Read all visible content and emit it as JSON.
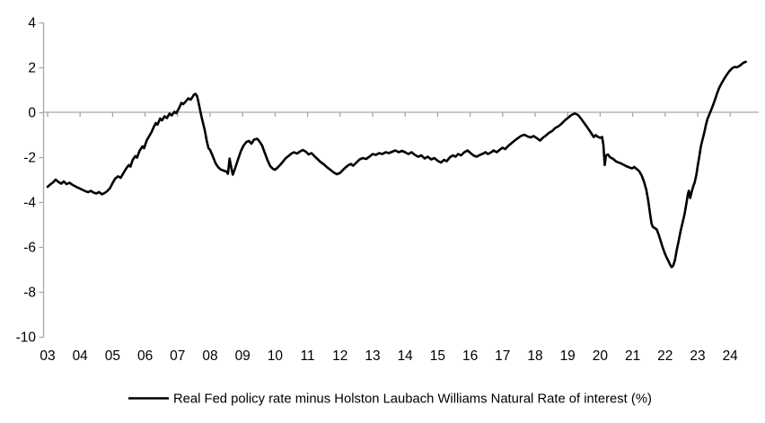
{
  "legend": {
    "label": "Real Fed policy rate minus Holston Laubach Williams Natural Rate of interest (%)"
  },
  "colors": {
    "axis": "#a6a6a6",
    "series": "#000000",
    "background": "#ffffff"
  },
  "chart_data": {
    "type": "line",
    "title": "",
    "xlabel": "",
    "ylabel": "",
    "grid": "zero-line-only",
    "legend_position": "bottom-center",
    "ylim": [
      -10,
      4
    ],
    "xlim": [
      2002.85,
      2024.9
    ],
    "y_ticks": [
      4,
      2,
      0,
      -2,
      -4,
      -6,
      -8,
      -10
    ],
    "y_tick_labels": [
      "4",
      "2",
      "0",
      "-2",
      "-4",
      "-6",
      "-8",
      "-10"
    ],
    "x_tick_years": [
      2003,
      2004,
      2005,
      2006,
      2007,
      2008,
      2009,
      2010,
      2011,
      2012,
      2013,
      2014,
      2015,
      2016,
      2017,
      2018,
      2019,
      2020,
      2021,
      2022,
      2023,
      2024
    ],
    "x_tick_labels": [
      "03",
      "04",
      "05",
      "06",
      "07",
      "08",
      "09",
      "10",
      "11",
      "12",
      "13",
      "14",
      "15",
      "16",
      "17",
      "18",
      "19",
      "20",
      "21",
      "22",
      "23",
      "24"
    ],
    "series": [
      {
        "name": "Real Fed policy rate minus Holston Laubach Williams Natural Rate of interest (%)",
        "color": "#000000",
        "points": [
          [
            2003.0,
            -3.32
          ],
          [
            2003.08,
            -3.22
          ],
          [
            2003.17,
            -3.12
          ],
          [
            2003.25,
            -3.0
          ],
          [
            2003.33,
            -3.1
          ],
          [
            2003.42,
            -3.18
          ],
          [
            2003.5,
            -3.08
          ],
          [
            2003.58,
            -3.2
          ],
          [
            2003.67,
            -3.14
          ],
          [
            2003.75,
            -3.22
          ],
          [
            2003.83,
            -3.28
          ],
          [
            2003.92,
            -3.35
          ],
          [
            2004.0,
            -3.4
          ],
          [
            2004.08,
            -3.46
          ],
          [
            2004.17,
            -3.52
          ],
          [
            2004.25,
            -3.56
          ],
          [
            2004.33,
            -3.5
          ],
          [
            2004.42,
            -3.58
          ],
          [
            2004.5,
            -3.62
          ],
          [
            2004.58,
            -3.55
          ],
          [
            2004.67,
            -3.65
          ],
          [
            2004.75,
            -3.6
          ],
          [
            2004.83,
            -3.52
          ],
          [
            2004.92,
            -3.38
          ],
          [
            2005.0,
            -3.15
          ],
          [
            2005.08,
            -2.95
          ],
          [
            2005.17,
            -2.85
          ],
          [
            2005.25,
            -2.92
          ],
          [
            2005.33,
            -2.72
          ],
          [
            2005.42,
            -2.5
          ],
          [
            2005.5,
            -2.35
          ],
          [
            2005.55,
            -2.42
          ],
          [
            2005.62,
            -2.12
          ],
          [
            2005.7,
            -1.95
          ],
          [
            2005.75,
            -2.02
          ],
          [
            2005.83,
            -1.72
          ],
          [
            2005.92,
            -1.52
          ],
          [
            2005.97,
            -1.6
          ],
          [
            2006.05,
            -1.25
          ],
          [
            2006.12,
            -1.08
          ],
          [
            2006.2,
            -0.88
          ],
          [
            2006.25,
            -0.7
          ],
          [
            2006.33,
            -0.48
          ],
          [
            2006.38,
            -0.55
          ],
          [
            2006.46,
            -0.28
          ],
          [
            2006.52,
            -0.36
          ],
          [
            2006.6,
            -0.18
          ],
          [
            2006.67,
            -0.26
          ],
          [
            2006.75,
            -0.06
          ],
          [
            2006.82,
            -0.14
          ],
          [
            2006.9,
            0.02
          ],
          [
            2006.96,
            -0.04
          ],
          [
            2007.05,
            0.2
          ],
          [
            2007.12,
            0.42
          ],
          [
            2007.17,
            0.36
          ],
          [
            2007.25,
            0.48
          ],
          [
            2007.33,
            0.62
          ],
          [
            2007.4,
            0.56
          ],
          [
            2007.45,
            0.66
          ],
          [
            2007.5,
            0.78
          ],
          [
            2007.55,
            0.82
          ],
          [
            2007.6,
            0.72
          ],
          [
            2007.65,
            0.4
          ],
          [
            2007.7,
            0.05
          ],
          [
            2007.75,
            -0.3
          ],
          [
            2007.83,
            -0.75
          ],
          [
            2007.9,
            -1.3
          ],
          [
            2007.95,
            -1.6
          ],
          [
            2008.0,
            -1.68
          ],
          [
            2008.08,
            -1.95
          ],
          [
            2008.17,
            -2.28
          ],
          [
            2008.25,
            -2.45
          ],
          [
            2008.33,
            -2.55
          ],
          [
            2008.42,
            -2.6
          ],
          [
            2008.5,
            -2.64
          ],
          [
            2008.55,
            -2.74
          ],
          [
            2008.6,
            -2.06
          ],
          [
            2008.65,
            -2.45
          ],
          [
            2008.7,
            -2.78
          ],
          [
            2008.78,
            -2.45
          ],
          [
            2008.87,
            -2.05
          ],
          [
            2008.95,
            -1.72
          ],
          [
            2009.03,
            -1.48
          ],
          [
            2009.12,
            -1.32
          ],
          [
            2009.2,
            -1.28
          ],
          [
            2009.27,
            -1.4
          ],
          [
            2009.35,
            -1.22
          ],
          [
            2009.45,
            -1.18
          ],
          [
            2009.52,
            -1.3
          ],
          [
            2009.6,
            -1.48
          ],
          [
            2009.68,
            -1.8
          ],
          [
            2009.77,
            -2.15
          ],
          [
            2009.85,
            -2.4
          ],
          [
            2009.93,
            -2.52
          ],
          [
            2010.0,
            -2.56
          ],
          [
            2010.08,
            -2.46
          ],
          [
            2010.17,
            -2.32
          ],
          [
            2010.25,
            -2.18
          ],
          [
            2010.33,
            -2.04
          ],
          [
            2010.42,
            -1.94
          ],
          [
            2010.5,
            -1.84
          ],
          [
            2010.58,
            -1.78
          ],
          [
            2010.67,
            -1.84
          ],
          [
            2010.75,
            -1.76
          ],
          [
            2010.85,
            -1.68
          ],
          [
            2010.95,
            -1.76
          ],
          [
            2011.03,
            -1.88
          ],
          [
            2011.12,
            -1.82
          ],
          [
            2011.2,
            -1.94
          ],
          [
            2011.3,
            -2.08
          ],
          [
            2011.4,
            -2.22
          ],
          [
            2011.5,
            -2.32
          ],
          [
            2011.6,
            -2.45
          ],
          [
            2011.7,
            -2.56
          ],
          [
            2011.8,
            -2.68
          ],
          [
            2011.9,
            -2.76
          ],
          [
            2012.0,
            -2.7
          ],
          [
            2012.08,
            -2.58
          ],
          [
            2012.17,
            -2.45
          ],
          [
            2012.25,
            -2.36
          ],
          [
            2012.33,
            -2.3
          ],
          [
            2012.4,
            -2.38
          ],
          [
            2012.5,
            -2.24
          ],
          [
            2012.6,
            -2.1
          ],
          [
            2012.7,
            -2.04
          ],
          [
            2012.8,
            -2.08
          ],
          [
            2012.9,
            -1.98
          ],
          [
            2013.0,
            -1.86
          ],
          [
            2013.1,
            -1.9
          ],
          [
            2013.2,
            -1.82
          ],
          [
            2013.3,
            -1.86
          ],
          [
            2013.4,
            -1.78
          ],
          [
            2013.5,
            -1.82
          ],
          [
            2013.6,
            -1.76
          ],
          [
            2013.7,
            -1.7
          ],
          [
            2013.8,
            -1.78
          ],
          [
            2013.9,
            -1.72
          ],
          [
            2014.0,
            -1.78
          ],
          [
            2014.1,
            -1.86
          ],
          [
            2014.2,
            -1.78
          ],
          [
            2014.3,
            -1.9
          ],
          [
            2014.4,
            -1.98
          ],
          [
            2014.5,
            -1.92
          ],
          [
            2014.6,
            -2.06
          ],
          [
            2014.7,
            -1.98
          ],
          [
            2014.8,
            -2.1
          ],
          [
            2014.9,
            -2.04
          ],
          [
            2015.0,
            -2.16
          ],
          [
            2015.1,
            -2.24
          ],
          [
            2015.2,
            -2.12
          ],
          [
            2015.28,
            -2.18
          ],
          [
            2015.38,
            -2.0
          ],
          [
            2015.47,
            -1.92
          ],
          [
            2015.55,
            -1.98
          ],
          [
            2015.63,
            -1.86
          ],
          [
            2015.72,
            -1.92
          ],
          [
            2015.82,
            -1.78
          ],
          [
            2015.92,
            -1.7
          ],
          [
            2016.0,
            -1.8
          ],
          [
            2016.1,
            -1.92
          ],
          [
            2016.2,
            -1.98
          ],
          [
            2016.3,
            -1.9
          ],
          [
            2016.4,
            -1.84
          ],
          [
            2016.47,
            -1.78
          ],
          [
            2016.55,
            -1.86
          ],
          [
            2016.65,
            -1.78
          ],
          [
            2016.72,
            -1.7
          ],
          [
            2016.82,
            -1.78
          ],
          [
            2016.92,
            -1.66
          ],
          [
            2017.0,
            -1.58
          ],
          [
            2017.08,
            -1.64
          ],
          [
            2017.17,
            -1.5
          ],
          [
            2017.27,
            -1.38
          ],
          [
            2017.37,
            -1.26
          ],
          [
            2017.47,
            -1.15
          ],
          [
            2017.57,
            -1.05
          ],
          [
            2017.67,
            -1.0
          ],
          [
            2017.77,
            -1.08
          ],
          [
            2017.87,
            -1.12
          ],
          [
            2017.95,
            -1.06
          ],
          [
            2018.05,
            -1.15
          ],
          [
            2018.15,
            -1.26
          ],
          [
            2018.25,
            -1.12
          ],
          [
            2018.33,
            -1.04
          ],
          [
            2018.42,
            -0.92
          ],
          [
            2018.52,
            -0.84
          ],
          [
            2018.62,
            -0.7
          ],
          [
            2018.72,
            -0.62
          ],
          [
            2018.82,
            -0.5
          ],
          [
            2018.92,
            -0.35
          ],
          [
            2019.02,
            -0.24
          ],
          [
            2019.12,
            -0.12
          ],
          [
            2019.22,
            -0.05
          ],
          [
            2019.32,
            -0.12
          ],
          [
            2019.42,
            -0.3
          ],
          [
            2019.52,
            -0.5
          ],
          [
            2019.62,
            -0.7
          ],
          [
            2019.72,
            -0.92
          ],
          [
            2019.8,
            -1.1
          ],
          [
            2019.86,
            -1.02
          ],
          [
            2019.94,
            -1.1
          ],
          [
            2020.0,
            -1.14
          ],
          [
            2020.06,
            -1.1
          ],
          [
            2020.1,
            -1.45
          ],
          [
            2020.14,
            -2.35
          ],
          [
            2020.18,
            -1.92
          ],
          [
            2020.24,
            -1.88
          ],
          [
            2020.3,
            -2.0
          ],
          [
            2020.4,
            -2.08
          ],
          [
            2020.5,
            -2.2
          ],
          [
            2020.6,
            -2.25
          ],
          [
            2020.7,
            -2.32
          ],
          [
            2020.8,
            -2.4
          ],
          [
            2020.9,
            -2.46
          ],
          [
            2020.98,
            -2.5
          ],
          [
            2021.05,
            -2.44
          ],
          [
            2021.12,
            -2.52
          ],
          [
            2021.2,
            -2.62
          ],
          [
            2021.28,
            -2.82
          ],
          [
            2021.35,
            -3.1
          ],
          [
            2021.42,
            -3.45
          ],
          [
            2021.48,
            -3.95
          ],
          [
            2021.54,
            -4.55
          ],
          [
            2021.58,
            -4.95
          ],
          [
            2021.62,
            -5.1
          ],
          [
            2021.68,
            -5.16
          ],
          [
            2021.74,
            -5.22
          ],
          [
            2021.8,
            -5.45
          ],
          [
            2021.86,
            -5.72
          ],
          [
            2021.92,
            -6.0
          ],
          [
            2021.98,
            -6.25
          ],
          [
            2022.04,
            -6.45
          ],
          [
            2022.1,
            -6.62
          ],
          [
            2022.15,
            -6.78
          ],
          [
            2022.2,
            -6.9
          ],
          [
            2022.25,
            -6.82
          ],
          [
            2022.3,
            -6.58
          ],
          [
            2022.36,
            -6.12
          ],
          [
            2022.42,
            -5.7
          ],
          [
            2022.48,
            -5.25
          ],
          [
            2022.54,
            -4.9
          ],
          [
            2022.6,
            -4.52
          ],
          [
            2022.65,
            -4.1
          ],
          [
            2022.7,
            -3.65
          ],
          [
            2022.73,
            -3.5
          ],
          [
            2022.77,
            -3.82
          ],
          [
            2022.81,
            -3.58
          ],
          [
            2022.86,
            -3.32
          ],
          [
            2022.91,
            -3.12
          ],
          [
            2022.96,
            -2.78
          ],
          [
            2023.0,
            -2.4
          ],
          [
            2023.05,
            -1.98
          ],
          [
            2023.1,
            -1.52
          ],
          [
            2023.15,
            -1.22
          ],
          [
            2023.2,
            -0.94
          ],
          [
            2023.25,
            -0.58
          ],
          [
            2023.3,
            -0.3
          ],
          [
            2023.36,
            -0.1
          ],
          [
            2023.42,
            0.12
          ],
          [
            2023.48,
            0.35
          ],
          [
            2023.54,
            0.58
          ],
          [
            2023.6,
            0.85
          ],
          [
            2023.66,
            1.08
          ],
          [
            2023.72,
            1.25
          ],
          [
            2023.78,
            1.4
          ],
          [
            2023.84,
            1.55
          ],
          [
            2023.9,
            1.68
          ],
          [
            2023.96,
            1.8
          ],
          [
            2024.02,
            1.9
          ],
          [
            2024.08,
            1.98
          ],
          [
            2024.14,
            2.02
          ],
          [
            2024.2,
            2.0
          ],
          [
            2024.26,
            2.04
          ],
          [
            2024.32,
            2.1
          ],
          [
            2024.4,
            2.2
          ],
          [
            2024.48,
            2.25
          ]
        ]
      }
    ]
  }
}
